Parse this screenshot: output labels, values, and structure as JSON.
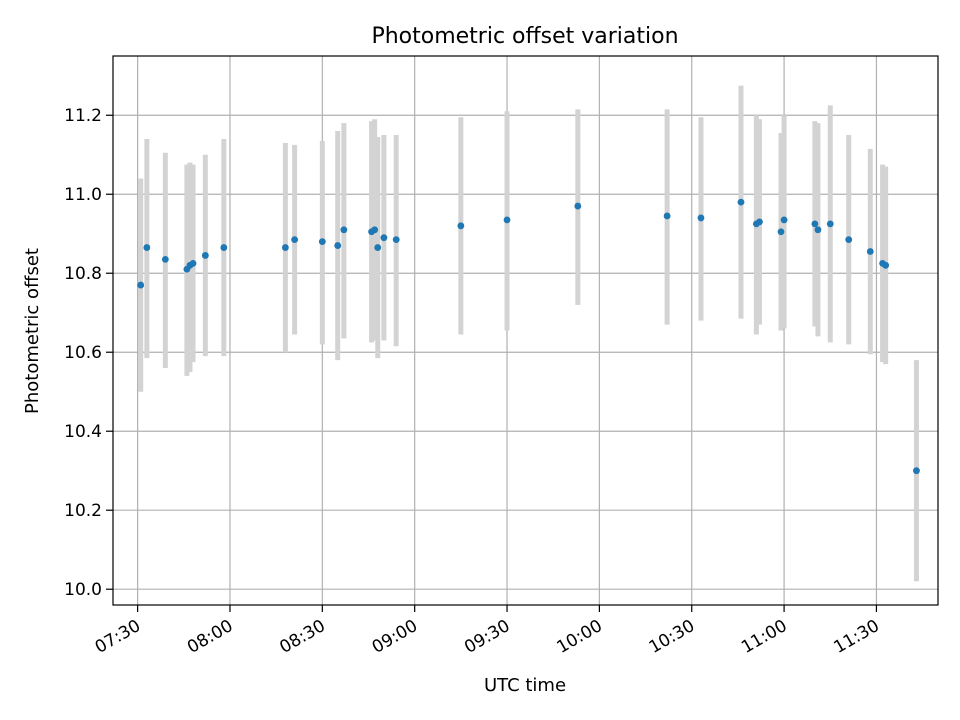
{
  "chart_data": {
    "type": "scatter",
    "title": "Photometric offset variation",
    "xlabel": "UTC time",
    "ylabel": "Photometric offset",
    "xlim": [
      "07:22",
      "11:50"
    ],
    "ylim": [
      9.96,
      11.35
    ],
    "x_ticks": [
      "07:30",
      "08:00",
      "08:30",
      "09:00",
      "09:30",
      "10:00",
      "10:30",
      "11:00",
      "11:30"
    ],
    "y_ticks": [
      10.0,
      10.2,
      10.4,
      10.6,
      10.8,
      11.0,
      11.2
    ],
    "grid": true,
    "colors": {
      "point": "#1f77b4",
      "errorbar": "#d3d3d3",
      "grid": "#b0b0b0"
    },
    "points": [
      {
        "x": "07:31",
        "y": 10.77,
        "err_low": 10.5,
        "err_high": 11.04
      },
      {
        "x": "07:33",
        "y": 10.865,
        "err_low": 10.585,
        "err_high": 11.14
      },
      {
        "x": "07:39",
        "y": 10.835,
        "err_low": 10.56,
        "err_high": 11.105
      },
      {
        "x": "07:46",
        "y": 10.81,
        "err_low": 10.54,
        "err_high": 11.075
      },
      {
        "x": "07:47",
        "y": 10.82,
        "err_low": 10.55,
        "err_high": 11.08
      },
      {
        "x": "07:48",
        "y": 10.825,
        "err_low": 10.575,
        "err_high": 11.075
      },
      {
        "x": "07:52",
        "y": 10.845,
        "err_low": 10.59,
        "err_high": 11.1
      },
      {
        "x": "07:58",
        "y": 10.865,
        "err_low": 10.59,
        "err_high": 11.14
      },
      {
        "x": "08:18",
        "y": 10.865,
        "err_low": 10.6,
        "err_high": 11.13
      },
      {
        "x": "08:21",
        "y": 10.885,
        "err_low": 10.645,
        "err_high": 11.125
      },
      {
        "x": "08:30",
        "y": 10.88,
        "err_low": 10.62,
        "err_high": 11.135
      },
      {
        "x": "08:35",
        "y": 10.87,
        "err_low": 10.58,
        "err_high": 11.16
      },
      {
        "x": "08:37",
        "y": 10.91,
        "err_low": 10.635,
        "err_high": 11.18
      },
      {
        "x": "08:46",
        "y": 10.905,
        "err_low": 10.625,
        "err_high": 11.185
      },
      {
        "x": "08:47",
        "y": 10.91,
        "err_low": 10.63,
        "err_high": 11.19
      },
      {
        "x": "08:48",
        "y": 10.865,
        "err_low": 10.585,
        "err_high": 11.145
      },
      {
        "x": "08:50",
        "y": 10.89,
        "err_low": 10.63,
        "err_high": 11.15
      },
      {
        "x": "08:54",
        "y": 10.885,
        "err_low": 10.615,
        "err_high": 11.15
      },
      {
        "x": "09:15",
        "y": 10.92,
        "err_low": 10.645,
        "err_high": 11.195
      },
      {
        "x": "09:30",
        "y": 10.935,
        "err_low": 10.655,
        "err_high": 11.21
      },
      {
        "x": "09:53",
        "y": 10.97,
        "err_low": 10.72,
        "err_high": 11.215
      },
      {
        "x": "10:22",
        "y": 10.945,
        "err_low": 10.67,
        "err_high": 11.215
      },
      {
        "x": "10:33",
        "y": 10.94,
        "err_low": 10.68,
        "err_high": 11.195
      },
      {
        "x": "10:46",
        "y": 10.98,
        "err_low": 10.685,
        "err_high": 11.275
      },
      {
        "x": "10:51",
        "y": 10.925,
        "err_low": 10.645,
        "err_high": 11.2
      },
      {
        "x": "10:52",
        "y": 10.93,
        "err_low": 10.67,
        "err_high": 11.19
      },
      {
        "x": "10:59",
        "y": 10.905,
        "err_low": 10.655,
        "err_high": 11.155
      },
      {
        "x": "11:00",
        "y": 10.935,
        "err_low": 10.66,
        "err_high": 11.2
      },
      {
        "x": "11:10",
        "y": 10.925,
        "err_low": 10.665,
        "err_high": 11.185
      },
      {
        "x": "11:11",
        "y": 10.91,
        "err_low": 10.64,
        "err_high": 11.18
      },
      {
        "x": "11:15",
        "y": 10.925,
        "err_low": 10.625,
        "err_high": 11.225
      },
      {
        "x": "11:21",
        "y": 10.885,
        "err_low": 10.62,
        "err_high": 11.15
      },
      {
        "x": "11:28",
        "y": 10.855,
        "err_low": 10.595,
        "err_high": 11.115
      },
      {
        "x": "11:32",
        "y": 10.825,
        "err_low": 10.575,
        "err_high": 11.075
      },
      {
        "x": "11:33",
        "y": 10.82,
        "err_low": 10.57,
        "err_high": 11.07
      },
      {
        "x": "11:43",
        "y": 10.3,
        "err_low": 10.02,
        "err_high": 10.58
      }
    ]
  }
}
